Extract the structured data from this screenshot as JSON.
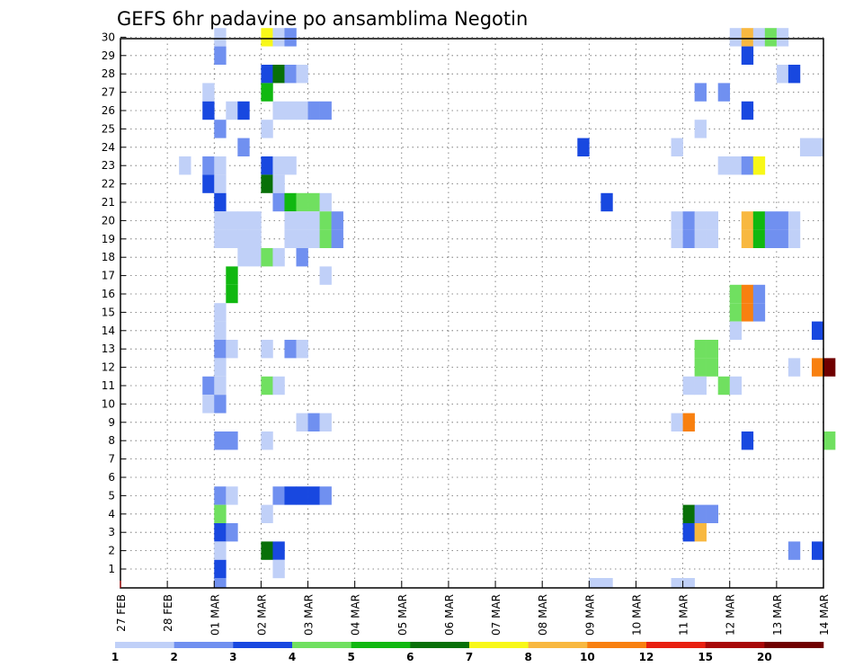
{
  "chart_data": {
    "type": "heatmap",
    "title": "GEFS 6hr padavine po ansamblima Negotin",
    "y_members": [
      1,
      2,
      3,
      4,
      5,
      6,
      7,
      8,
      9,
      10,
      11,
      12,
      13,
      14,
      15,
      16,
      17,
      18,
      19,
      20,
      21,
      22,
      23,
      24,
      25,
      26,
      27,
      28,
      29,
      30
    ],
    "x_tick_labels": [
      "27 FEB",
      "28 FEB",
      "01 MAR",
      "02 MAR",
      "03 MAR",
      "04 MAR",
      "05 MAR",
      "06 MAR",
      "07 MAR",
      "08 MAR",
      "09 MAR",
      "10 MAR",
      "11 MAR",
      "12 MAR",
      "13 MAR",
      "14 MAR"
    ],
    "x_range_slots": [
      0,
      60
    ],
    "grid": true,
    "colorbar": {
      "colors": [
        "#c0d0f8",
        "#7090f0",
        "#1848e0",
        "#70e060",
        "#10b810",
        "#087008",
        "#f8f818",
        "#f8b840",
        "#f88010",
        "#e82010",
        "#a80808",
        "#700000"
      ],
      "tick_labels": [
        "1",
        "2",
        "3",
        "4",
        "5",
        "6",
        "7",
        "8",
        "10",
        "12",
        "15",
        "20"
      ]
    },
    "cells": [
      {
        "m": 30,
        "t": 8,
        "c": 0
      },
      {
        "m": 30,
        "t": 12,
        "c": 6
      },
      {
        "m": 30,
        "t": 13,
        "c": 0
      },
      {
        "m": 30,
        "t": 14,
        "c": 1
      },
      {
        "m": 30,
        "t": 52,
        "c": 0
      },
      {
        "m": 30,
        "t": 53,
        "c": 7
      },
      {
        "m": 30,
        "t": 54,
        "c": 0
      },
      {
        "m": 30,
        "t": 55,
        "c": 3
      },
      {
        "m": 30,
        "t": 56,
        "c": 0
      },
      {
        "m": 29,
        "t": 8,
        "c": 1
      },
      {
        "m": 29,
        "t": 53,
        "c": 2
      },
      {
        "m": 28,
        "t": 12,
        "c": 2
      },
      {
        "m": 28,
        "t": 13,
        "c": 5
      },
      {
        "m": 28,
        "t": 14,
        "c": 1
      },
      {
        "m": 28,
        "t": 15,
        "c": 0
      },
      {
        "m": 28,
        "t": 56,
        "c": 0
      },
      {
        "m": 28,
        "t": 57,
        "c": 2
      },
      {
        "m": 27,
        "t": 7,
        "c": 0
      },
      {
        "m": 27,
        "t": 12,
        "c": 4
      },
      {
        "m": 27,
        "t": 49,
        "c": 1
      },
      {
        "m": 27,
        "t": 51,
        "c": 1
      },
      {
        "m": 26,
        "t": 7,
        "c": 2
      },
      {
        "m": 26,
        "t": 9,
        "c": 0
      },
      {
        "m": 26,
        "t": 10,
        "c": 2
      },
      {
        "m": 26,
        "t": 13,
        "c": 0
      },
      {
        "m": 26,
        "t": 14,
        "c": 0
      },
      {
        "m": 26,
        "t": 15,
        "c": 0
      },
      {
        "m": 26,
        "t": 16,
        "c": 1
      },
      {
        "m": 26,
        "t": 17,
        "c": 1
      },
      {
        "m": 26,
        "t": 53,
        "c": 2
      },
      {
        "m": 25,
        "t": 8,
        "c": 1
      },
      {
        "m": 25,
        "t": 12,
        "c": 0
      },
      {
        "m": 25,
        "t": 49,
        "c": 0
      },
      {
        "m": 24,
        "t": 10,
        "c": 1
      },
      {
        "m": 24,
        "t": 39,
        "c": 2
      },
      {
        "m": 24,
        "t": 47,
        "c": 0
      },
      {
        "m": 24,
        "t": 58,
        "c": 0
      },
      {
        "m": 24,
        "t": 59,
        "c": 0
      },
      {
        "m": 23,
        "t": 5,
        "c": 0
      },
      {
        "m": 23,
        "t": 7,
        "c": 1
      },
      {
        "m": 23,
        "t": 8,
        "c": 0
      },
      {
        "m": 23,
        "t": 12,
        "c": 2
      },
      {
        "m": 23,
        "t": 13,
        "c": 0
      },
      {
        "m": 23,
        "t": 14,
        "c": 0
      },
      {
        "m": 23,
        "t": 51,
        "c": 0
      },
      {
        "m": 23,
        "t": 52,
        "c": 0
      },
      {
        "m": 23,
        "t": 53,
        "c": 1
      },
      {
        "m": 23,
        "t": 54,
        "c": 6
      },
      {
        "m": 22,
        "t": 7,
        "c": 2
      },
      {
        "m": 22,
        "t": 8,
        "c": 0
      },
      {
        "m": 22,
        "t": 12,
        "c": 5
      },
      {
        "m": 22,
        "t": 13,
        "c": 0
      },
      {
        "m": 21,
        "t": 8,
        "c": 2
      },
      {
        "m": 21,
        "t": 13,
        "c": 1
      },
      {
        "m": 21,
        "t": 14,
        "c": 4
      },
      {
        "m": 21,
        "t": 15,
        "c": 3
      },
      {
        "m": 21,
        "t": 16,
        "c": 3
      },
      {
        "m": 21,
        "t": 17,
        "c": 0
      },
      {
        "m": 21,
        "t": 41,
        "c": 2
      },
      {
        "m": 20,
        "t": 8,
        "c": 0
      },
      {
        "m": 20,
        "t": 9,
        "c": 0
      },
      {
        "m": 20,
        "t": 10,
        "c": 0
      },
      {
        "m": 20,
        "t": 11,
        "c": 0
      },
      {
        "m": 20,
        "t": 14,
        "c": 0
      },
      {
        "m": 20,
        "t": 15,
        "c": 0
      },
      {
        "m": 20,
        "t": 16,
        "c": 0
      },
      {
        "m": 20,
        "t": 17,
        "c": 3
      },
      {
        "m": 20,
        "t": 18,
        "c": 1
      },
      {
        "m": 20,
        "t": 47,
        "c": 0
      },
      {
        "m": 20,
        "t": 48,
        "c": 1
      },
      {
        "m": 20,
        "t": 49,
        "c": 0
      },
      {
        "m": 20,
        "t": 50,
        "c": 0
      },
      {
        "m": 20,
        "t": 53,
        "c": 7
      },
      {
        "m": 20,
        "t": 54,
        "c": 4
      },
      {
        "m": 20,
        "t": 55,
        "c": 1
      },
      {
        "m": 20,
        "t": 56,
        "c": 1
      },
      {
        "m": 20,
        "t": 57,
        "c": 0
      },
      {
        "m": 19,
        "t": 8,
        "c": 0
      },
      {
        "m": 19,
        "t": 9,
        "c": 0
      },
      {
        "m": 19,
        "t": 10,
        "c": 0
      },
      {
        "m": 19,
        "t": 11,
        "c": 0
      },
      {
        "m": 19,
        "t": 14,
        "c": 0
      },
      {
        "m": 19,
        "t": 15,
        "c": 0
      },
      {
        "m": 19,
        "t": 16,
        "c": 0
      },
      {
        "m": 19,
        "t": 17,
        "c": 3
      },
      {
        "m": 19,
        "t": 18,
        "c": 1
      },
      {
        "m": 19,
        "t": 47,
        "c": 0
      },
      {
        "m": 19,
        "t": 48,
        "c": 1
      },
      {
        "m": 19,
        "t": 49,
        "c": 0
      },
      {
        "m": 19,
        "t": 50,
        "c": 0
      },
      {
        "m": 19,
        "t": 53,
        "c": 7
      },
      {
        "m": 19,
        "t": 54,
        "c": 4
      },
      {
        "m": 19,
        "t": 55,
        "c": 1
      },
      {
        "m": 19,
        "t": 56,
        "c": 1
      },
      {
        "m": 19,
        "t": 57,
        "c": 0
      },
      {
        "m": 18,
        "t": 10,
        "c": 0
      },
      {
        "m": 18,
        "t": 11,
        "c": 0
      },
      {
        "m": 18,
        "t": 12,
        "c": 3
      },
      {
        "m": 18,
        "t": 13,
        "c": 0
      },
      {
        "m": 18,
        "t": 15,
        "c": 1
      },
      {
        "m": 17,
        "t": 9,
        "c": 4
      },
      {
        "m": 17,
        "t": 17,
        "c": 0
      },
      {
        "m": 16,
        "t": 9,
        "c": 4
      },
      {
        "m": 16,
        "t": 52,
        "c": 3
      },
      {
        "m": 16,
        "t": 53,
        "c": 8
      },
      {
        "m": 16,
        "t": 54,
        "c": 1
      },
      {
        "m": 15,
        "t": 8,
        "c": 0
      },
      {
        "m": 15,
        "t": 52,
        "c": 3
      },
      {
        "m": 15,
        "t": 53,
        "c": 8
      },
      {
        "m": 15,
        "t": 54,
        "c": 1
      },
      {
        "m": 14,
        "t": 8,
        "c": 0
      },
      {
        "m": 14,
        "t": 52,
        "c": 0
      },
      {
        "m": 14,
        "t": 59,
        "c": 2
      },
      {
        "m": 13,
        "t": 8,
        "c": 1
      },
      {
        "m": 13,
        "t": 9,
        "c": 0
      },
      {
        "m": 13,
        "t": 12,
        "c": 0
      },
      {
        "m": 13,
        "t": 14,
        "c": 1
      },
      {
        "m": 13,
        "t": 15,
        "c": 0
      },
      {
        "m": 13,
        "t": 49,
        "c": 3
      },
      {
        "m": 13,
        "t": 50,
        "c": 3
      },
      {
        "m": 12,
        "t": 8,
        "c": 0
      },
      {
        "m": 12,
        "t": 49,
        "c": 3
      },
      {
        "m": 12,
        "t": 50,
        "c": 3
      },
      {
        "m": 12,
        "t": 57,
        "c": 0
      },
      {
        "m": 12,
        "t": 59,
        "c": 8
      },
      {
        "m": 12,
        "t": 60,
        "c": 11
      },
      {
        "m": 11,
        "t": 7,
        "c": 1
      },
      {
        "m": 11,
        "t": 8,
        "c": 0
      },
      {
        "m": 11,
        "t": 12,
        "c": 3
      },
      {
        "m": 11,
        "t": 13,
        "c": 0
      },
      {
        "m": 11,
        "t": 48,
        "c": 0
      },
      {
        "m": 11,
        "t": 49,
        "c": 0
      },
      {
        "m": 11,
        "t": 51,
        "c": 3
      },
      {
        "m": 11,
        "t": 52,
        "c": 0
      },
      {
        "m": 10,
        "t": 7,
        "c": 0
      },
      {
        "m": 10,
        "t": 8,
        "c": 1
      },
      {
        "m": 9,
        "t": 15,
        "c": 0
      },
      {
        "m": 9,
        "t": 16,
        "c": 1
      },
      {
        "m": 9,
        "t": 17,
        "c": 0
      },
      {
        "m": 9,
        "t": 47,
        "c": 0
      },
      {
        "m": 9,
        "t": 48,
        "c": 8
      },
      {
        "m": 8,
        "t": 8,
        "c": 1
      },
      {
        "m": 8,
        "t": 9,
        "c": 1
      },
      {
        "m": 8,
        "t": 12,
        "c": 0
      },
      {
        "m": 8,
        "t": 53,
        "c": 2
      },
      {
        "m": 8,
        "t": 60,
        "c": 3
      },
      {
        "m": 5,
        "t": 8,
        "c": 1
      },
      {
        "m": 5,
        "t": 9,
        "c": 0
      },
      {
        "m": 5,
        "t": 13,
        "c": 1
      },
      {
        "m": 5,
        "t": 14,
        "c": 2
      },
      {
        "m": 5,
        "t": 15,
        "c": 2
      },
      {
        "m": 5,
        "t": 16,
        "c": 2
      },
      {
        "m": 5,
        "t": 17,
        "c": 1
      },
      {
        "m": 4,
        "t": 8,
        "c": 3
      },
      {
        "m": 4,
        "t": 12,
        "c": 0
      },
      {
        "m": 4,
        "t": 48,
        "c": 5
      },
      {
        "m": 4,
        "t": 49,
        "c": 1
      },
      {
        "m": 4,
        "t": 50,
        "c": 1
      },
      {
        "m": 3,
        "t": 8,
        "c": 2
      },
      {
        "m": 3,
        "t": 9,
        "c": 1
      },
      {
        "m": 3,
        "t": 48,
        "c": 2
      },
      {
        "m": 3,
        "t": 49,
        "c": 7
      },
      {
        "m": 2,
        "t": 8,
        "c": 0
      },
      {
        "m": 2,
        "t": 12,
        "c": 5
      },
      {
        "m": 2,
        "t": 13,
        "c": 2
      },
      {
        "m": 2,
        "t": 57,
        "c": 1
      },
      {
        "m": 2,
        "t": 59,
        "c": 2
      },
      {
        "m": 1,
        "t": 8,
        "c": 2
      },
      {
        "m": 1,
        "t": 13,
        "c": 0
      },
      {
        "m": 0,
        "t": 8,
        "c": 1
      },
      {
        "m": 0,
        "t": 40,
        "c": 0
      },
      {
        "m": 0,
        "t": 41,
        "c": 0
      },
      {
        "m": 0,
        "t": 47,
        "c": 0
      },
      {
        "m": 0,
        "t": 48,
        "c": 0
      }
    ]
  }
}
